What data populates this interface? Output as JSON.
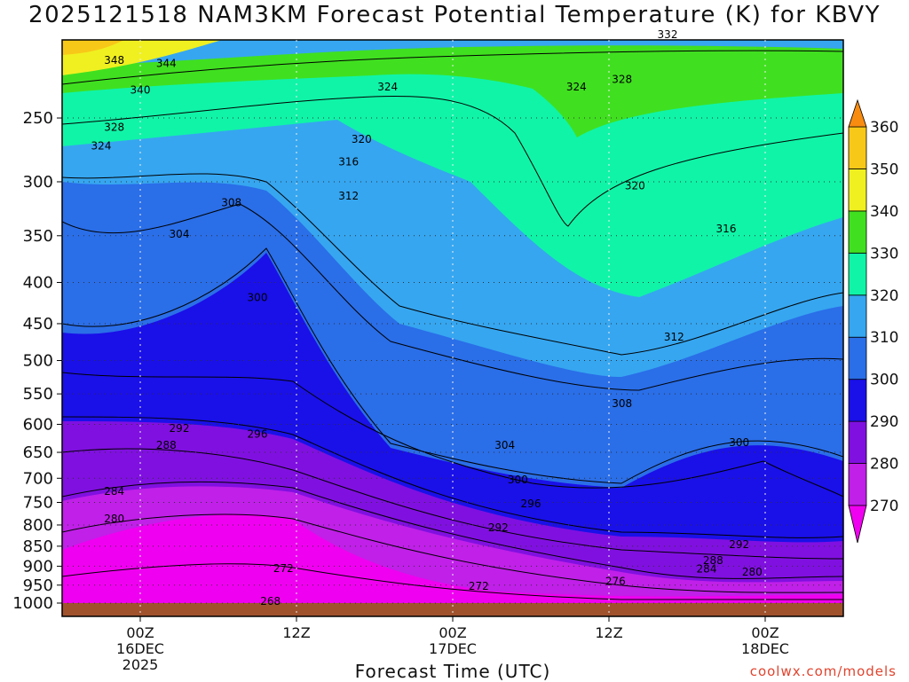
{
  "chart_data": {
    "type": "heatmap",
    "title": "2025121518 NAM3KM Forecast Potential Temperature (K) for KBVY",
    "xlabel": "Forecast Time (UTC)",
    "ylabel": "",
    "x_ticks": [
      {
        "label": "00Z",
        "sub": "16DEC",
        "sub2": "2025",
        "hour": 6
      },
      {
        "label": "12Z",
        "sub": "",
        "sub2": "",
        "hour": 18
      },
      {
        "label": "00Z",
        "sub": "17DEC",
        "sub2": "",
        "hour": 30
      },
      {
        "label": "12Z",
        "sub": "",
        "sub2": "",
        "hour": 42
      },
      {
        "label": "00Z",
        "sub": "18DEC",
        "sub2": "",
        "hour": 54
      }
    ],
    "x_range_hours": [
      0,
      60
    ],
    "y_ticks": [
      250,
      300,
      350,
      400,
      450,
      500,
      550,
      600,
      650,
      700,
      750,
      800,
      850,
      900,
      950,
      1000
    ],
    "y_range_hpa": [
      1000,
      200
    ],
    "colorbar": {
      "levels": [
        270,
        280,
        290,
        300,
        310,
        320,
        330,
        340,
        350,
        360
      ],
      "colors": [
        "#f000f0",
        "#c020e8",
        "#8010e0",
        "#1a10e8",
        "#0000c8",
        "#2a6ee8",
        "#36a6f0",
        "#1ee0f0",
        "#10f4a8",
        "#40e020",
        "#9ce820",
        "#f0f020",
        "#f8c818",
        "#f88c10"
      ]
    },
    "contour_labels": [
      {
        "value": "348",
        "hour": 4.0,
        "p": 213
      },
      {
        "value": "344",
        "hour": 8.0,
        "p": 215
      },
      {
        "value": "340",
        "hour": 6.0,
        "p": 232
      },
      {
        "value": "328",
        "hour": 4.0,
        "p": 258
      },
      {
        "value": "324",
        "hour": 3.0,
        "p": 272
      },
      {
        "value": "332",
        "hour": 46.5,
        "p": 198
      },
      {
        "value": "324",
        "hour": 25.0,
        "p": 230
      },
      {
        "value": "324",
        "hour": 39.5,
        "p": 230
      },
      {
        "value": "328",
        "hour": 43.0,
        "p": 225
      },
      {
        "value": "320",
        "hour": 23.0,
        "p": 267
      },
      {
        "value": "316",
        "hour": 22.0,
        "p": 285
      },
      {
        "value": "320",
        "hour": 44.0,
        "p": 305
      },
      {
        "value": "312",
        "hour": 22.0,
        "p": 314
      },
      {
        "value": "308",
        "hour": 13.0,
        "p": 320
      },
      {
        "value": "316",
        "hour": 51.0,
        "p": 345
      },
      {
        "value": "304",
        "hour": 9.0,
        "p": 350
      },
      {
        "value": "300",
        "hour": 15.0,
        "p": 420
      },
      {
        "value": "312",
        "hour": 47.0,
        "p": 470
      },
      {
        "value": "308",
        "hour": 43.0,
        "p": 568
      },
      {
        "value": "292",
        "hour": 9.0,
        "p": 610
      },
      {
        "value": "296",
        "hour": 15.0,
        "p": 620
      },
      {
        "value": "288",
        "hour": 8.0,
        "p": 640
      },
      {
        "value": "304",
        "hour": 34.0,
        "p": 640
      },
      {
        "value": "300",
        "hour": 52.0,
        "p": 635
      },
      {
        "value": "300",
        "hour": 35.0,
        "p": 707
      },
      {
        "value": "284",
        "hour": 4.0,
        "p": 730
      },
      {
        "value": "296",
        "hour": 36.0,
        "p": 757
      },
      {
        "value": "280",
        "hour": 4.0,
        "p": 790
      },
      {
        "value": "292",
        "hour": 33.5,
        "p": 810
      },
      {
        "value": "292",
        "hour": 52.0,
        "p": 850
      },
      {
        "value": "288",
        "hour": 50.0,
        "p": 890
      },
      {
        "value": "284",
        "hour": 49.5,
        "p": 912
      },
      {
        "value": "280",
        "hour": 53.0,
        "p": 920
      },
      {
        "value": "272",
        "hour": 17.0,
        "p": 910
      },
      {
        "value": "276",
        "hour": 42.5,
        "p": 945
      },
      {
        "value": "272",
        "hour": 32.0,
        "p": 958
      },
      {
        "value": "268",
        "hour": 16.0,
        "p": 1000
      }
    ]
  },
  "credit": "coolwx.com/models"
}
